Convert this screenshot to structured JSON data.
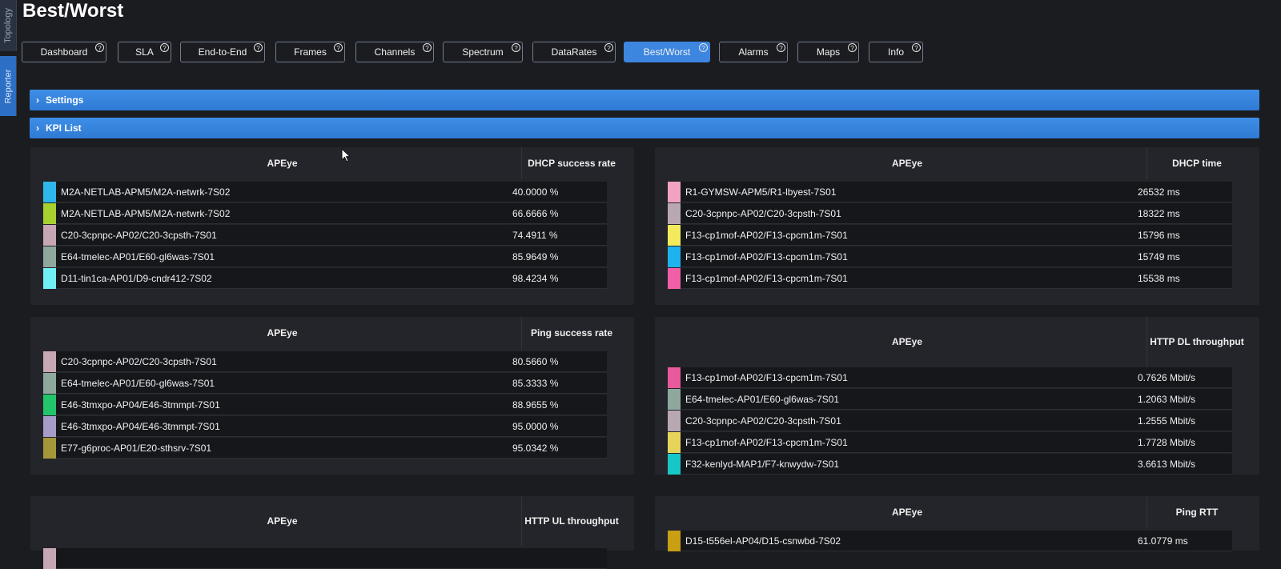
{
  "side_tabs": [
    {
      "label": "Topology"
    },
    {
      "label": "Reporter"
    }
  ],
  "page_title": "Best/Worst",
  "nav": [
    {
      "label": "Dashboard"
    },
    {
      "label": "SLA"
    },
    {
      "label": "End-to-End"
    },
    {
      "label": "Frames"
    },
    {
      "label": "Channels"
    },
    {
      "label": "Spectrum"
    },
    {
      "label": "DataRates"
    },
    {
      "label": "Best/Worst",
      "active": true
    },
    {
      "label": "Alarms"
    },
    {
      "label": "Maps"
    },
    {
      "label": "Info"
    }
  ],
  "help_glyph": "?",
  "accordions": {
    "settings": "Settings",
    "kpi_list": "KPI List",
    "chevron": "›"
  },
  "panels": [
    {
      "col_apeye": "APEye",
      "col_kpi": "DHCP success rate",
      "rows": [
        {
          "name": "M2A-NETLAB-APM5/M2A-netwrk-7S02",
          "value": "40.0000 %",
          "color": "#2fb7ec"
        },
        {
          "name": "M2A-NETLAB-APM5/M2A-netwrk-7S02",
          "value": "66.6666 %",
          "color": "#a6d12f"
        },
        {
          "name": "C20-3cpnpc-AP02/C20-3cpsth-7S01",
          "value": "74.4911 %",
          "color": "#c8a7b4"
        },
        {
          "name": "E64-tmelec-AP01/E60-gl6was-7S01",
          "value": "85.9649 %",
          "color": "#8fa89d"
        },
        {
          "name": "D11-tin1ca-AP01/D9-cndr412-7S02",
          "value": "98.4234 %",
          "color": "#6ff0f5"
        }
      ]
    },
    {
      "col_apeye": "APEye",
      "col_kpi": "DHCP time",
      "rows": [
        {
          "name": "R1-GYMSW-APM5/R1-lbyest-7S01",
          "value": "26532 ms",
          "color": "#f2a3c1"
        },
        {
          "name": "C20-3cpnpc-AP02/C20-3cpsth-7S01",
          "value": "18322 ms",
          "color": "#b9a8b2"
        },
        {
          "name": "F13-cp1mof-AP02/F13-cpcm1m-7S01",
          "value": "15796 ms",
          "color": "#f3ea5d"
        },
        {
          "name": "F13-cp1mof-AP02/F13-cpcm1m-7S01",
          "value": "15749 ms",
          "color": "#1eb2ee"
        },
        {
          "name": "F13-cp1mof-AP02/F13-cpcm1m-7S01",
          "value": "15538 ms",
          "color": "#f05fa7"
        }
      ]
    },
    {
      "col_apeye": "APEye",
      "col_kpi": "Ping success rate",
      "rows": [
        {
          "name": "C20-3cpnpc-AP02/C20-3cpsth-7S01",
          "value": "80.5660 %",
          "color": "#c8a7b4"
        },
        {
          "name": "E64-tmelec-AP01/E60-gl6was-7S01",
          "value": "85.3333 %",
          "color": "#8fa89d"
        },
        {
          "name": "E46-3tmxpo-AP04/E46-3tmmpt-7S01",
          "value": "88.9655 %",
          "color": "#22c56b"
        },
        {
          "name": "E46-3tmxpo-AP04/E46-3tmmpt-7S01",
          "value": "95.0000 %",
          "color": "#a59cc9"
        },
        {
          "name": "E77-g6proc-AP01/E20-sthsrv-7S01",
          "value": "95.0342 %",
          "color": "#a3973a"
        }
      ]
    },
    {
      "col_apeye": "APEye",
      "col_kpi": "HTTP DL throughput",
      "rows": [
        {
          "name": "F13-cp1mof-AP02/F13-cpcm1m-7S01",
          "value": "0.7626 Mbit/s",
          "color": "#e85a9c"
        },
        {
          "name": "E64-tmelec-AP01/E60-gl6was-7S01",
          "value": "1.2063 Mbit/s",
          "color": "#8fa89d"
        },
        {
          "name": "C20-3cpnpc-AP02/C20-3cpsth-7S01",
          "value": "1.2555 Mbit/s",
          "color": "#b9a8b2"
        },
        {
          "name": "F13-cp1mof-AP02/F13-cpcm1m-7S01",
          "value": "1.7728 Mbit/s",
          "color": "#e6d45a"
        },
        {
          "name": "F32-kenlyd-MAP1/F7-knwydw-7S01",
          "value": "3.6613 Mbit/s",
          "color": "#17c6c6"
        }
      ]
    },
    {
      "col_apeye": "APEye",
      "col_kpi": "HTTP UL throughput",
      "rows": [
        {
          "name": "",
          "value": "",
          "color": "#c8a7b4"
        }
      ]
    },
    {
      "col_apeye": "APEye",
      "col_kpi": "Ping RTT",
      "rows": [
        {
          "name": "D15-t556el-AP04/D15-csnwbd-7S02",
          "value": "61.0779 ms",
          "color": "#c9a014"
        }
      ]
    }
  ]
}
